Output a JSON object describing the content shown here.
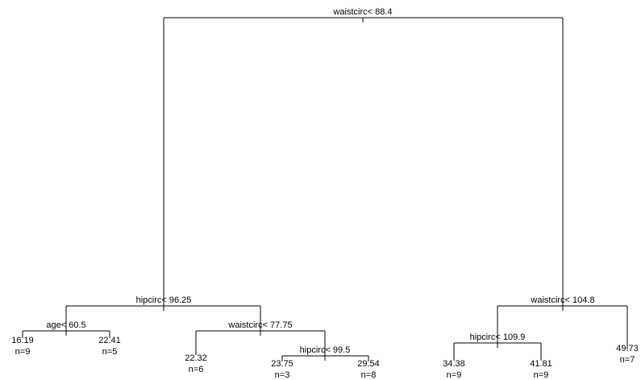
{
  "tree": {
    "root": {
      "label": "waistcirc< 88.4"
    },
    "left": {
      "label": "hipcirc< 96.25"
    },
    "left_left": {
      "label": "age< 60.5"
    },
    "left_right": {
      "label": "waistcirc< 77.75"
    },
    "left_right_right": {
      "label": "hipcirc< 99.5"
    },
    "right": {
      "label": "waistcirc< 104.8"
    },
    "right_left": {
      "label": "hipcirc< 109.9"
    },
    "leaves": [
      {
        "value": "16.19",
        "n": "n=9"
      },
      {
        "value": "22.41",
        "n": "n=5"
      },
      {
        "value": "22.32",
        "n": "n=6"
      },
      {
        "value": "23.75",
        "n": "n=3"
      },
      {
        "value": "29.54",
        "n": "n=8"
      },
      {
        "value": "34.38",
        "n": "n=9"
      },
      {
        "value": "41.81",
        "n": "n=9"
      },
      {
        "value": "49.73",
        "n": "n=7"
      }
    ]
  }
}
